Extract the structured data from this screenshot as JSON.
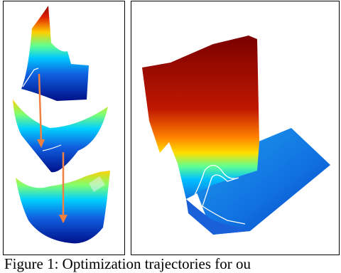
{
  "caption": "Figure 1: Optimization trajectories for ou"
}
